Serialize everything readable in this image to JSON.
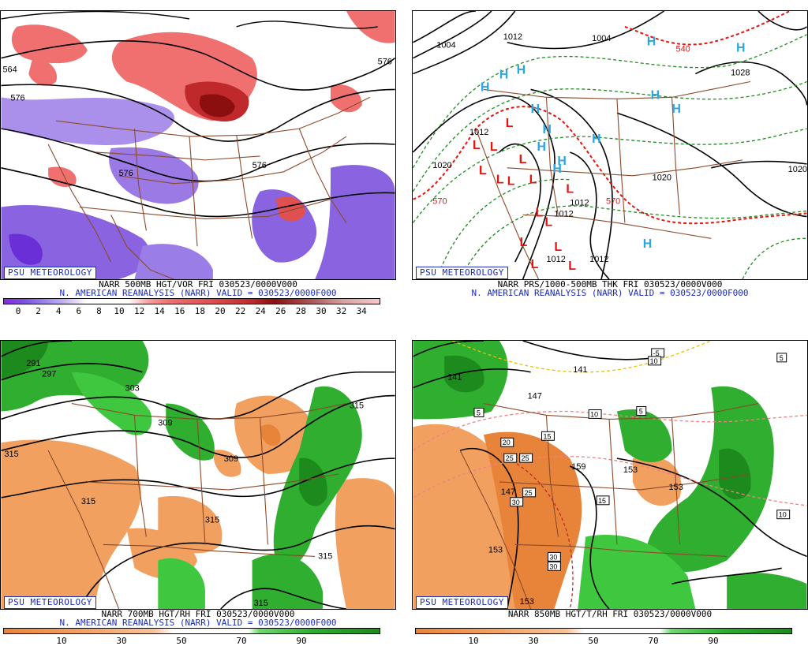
{
  "branding": "PSU METEOROLOGY",
  "panels": [
    {
      "caption1": "NARR 500MB HGT/VOR FRI 030523/0000V000",
      "caption2": "N. AMERICAN REANALYSIS (NARR) VALID = 030523/0000F000",
      "contour_labels": [
        "564",
        "576",
        "576",
        "576",
        "576"
      ],
      "colorbar_ticks": [
        "0",
        "2",
        "4",
        "6",
        "8",
        "10",
        "12",
        "14",
        "16",
        "18",
        "20",
        "22",
        "24",
        "26",
        "28",
        "30",
        "32",
        "34"
      ]
    },
    {
      "caption1": "NARR PRS/1000-500MB THK FRI 030523/0000V000",
      "caption2": "N. AMERICAN REANALYSIS (NARR) VALID = 030523/0000F000",
      "contour_labels": [
        "1004",
        "1012",
        "1004",
        "1020",
        "1012",
        "1012",
        "1012",
        "1012",
        "1012",
        "1020",
        "1020",
        "1028",
        "570",
        "540",
        "570"
      ],
      "high_symbol": "H",
      "low_symbol": "L"
    },
    {
      "caption1": "NARR 700MB HGT/RH FRI 030523/0000V000",
      "caption2": "N. AMERICAN REANALYSIS (NARR) VALID = 030523/0000F000",
      "contour_labels": [
        "291",
        "297",
        "303",
        "309",
        "309",
        "315",
        "315",
        "315",
        "315",
        "315",
        "315"
      ],
      "colorbar_ticks": [
        "10",
        "30",
        "50",
        "70",
        "90"
      ]
    },
    {
      "caption1": "NARR 850MB HGT/T/RH FRI 030523/0000V000",
      "caption2": "",
      "contour_labels": [
        "141",
        "141",
        "147",
        "147",
        "153",
        "153",
        "153",
        "153",
        "159"
      ],
      "temp_labels": [
        "-5",
        "5",
        "5",
        "5",
        "10",
        "10",
        "10",
        "15",
        "15",
        "20",
        "25",
        "25",
        "25",
        "30",
        "30",
        "30"
      ],
      "colorbar_ticks": [
        "10",
        "30",
        "50",
        "70",
        "90"
      ]
    }
  ],
  "colors": {
    "brand_blue": "#1a2bb8",
    "vort_purple": "#8a63e0",
    "vort_red": "#d9534f",
    "rh_green": "#2fae2f",
    "rh_orange": "#f2a060",
    "border_brown": "#8b4a2b"
  }
}
